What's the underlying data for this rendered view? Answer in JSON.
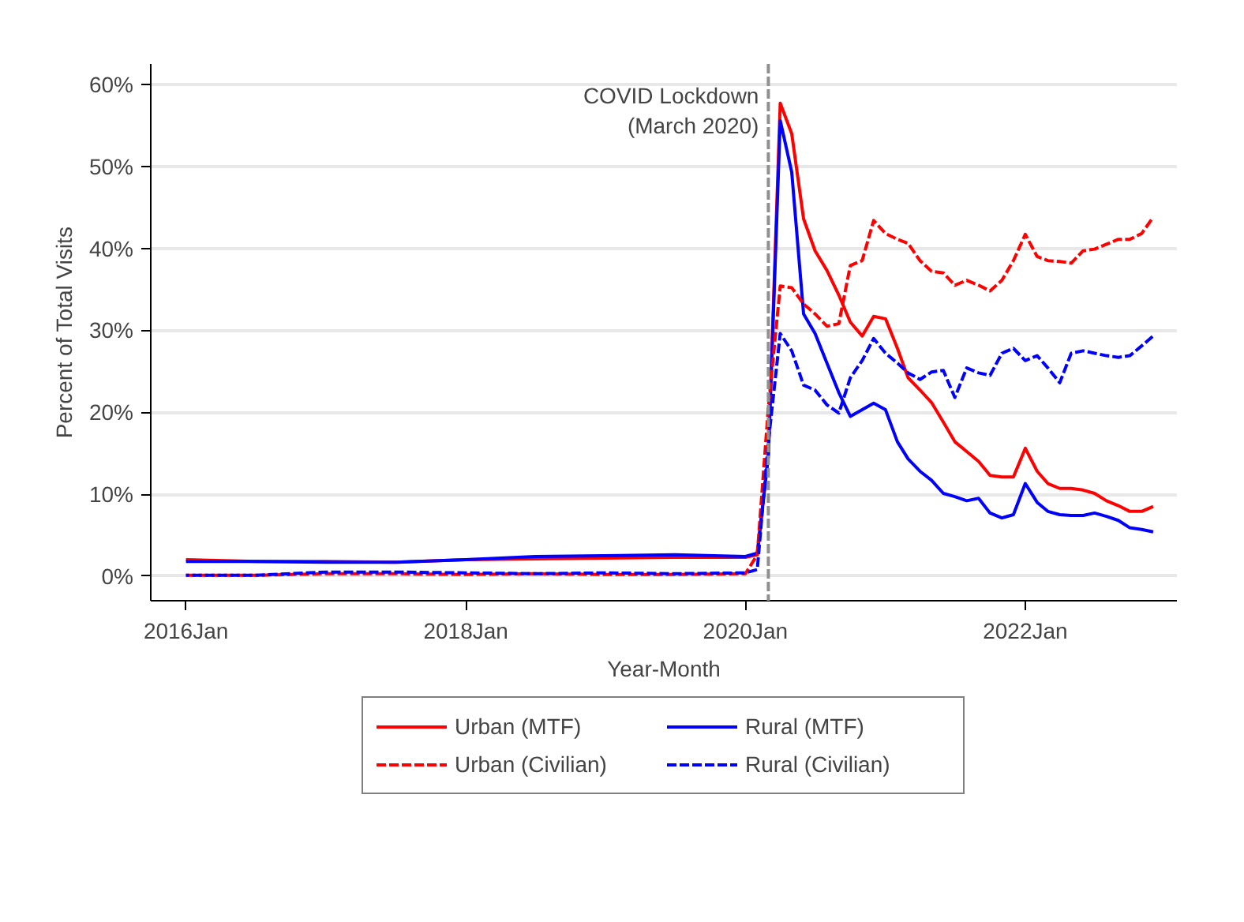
{
  "chart_data": {
    "type": "line",
    "xlabel": "Year-Month",
    "ylabel": "Percent of Total Visits",
    "x": [
      "2016-01",
      "2016-07",
      "2017-01",
      "2017-07",
      "2018-01",
      "2018-07",
      "2019-01",
      "2019-07",
      "2020-01",
      "2020-02",
      "2020-03",
      "2020-04",
      "2020-05",
      "2020-06",
      "2020-07",
      "2020-08",
      "2020-09",
      "2020-10",
      "2020-11",
      "2020-12",
      "2021-01",
      "2021-02",
      "2021-03",
      "2021-04",
      "2021-05",
      "2021-06",
      "2021-07",
      "2021-08",
      "2021-09",
      "2021-10",
      "2021-11",
      "2021-12",
      "2022-01",
      "2022-02",
      "2022-03",
      "2022-04",
      "2022-05",
      "2022-06",
      "2022-07",
      "2022-08",
      "2022-09",
      "2022-10",
      "2022-11",
      "2022-12"
    ],
    "series": [
      {
        "name": "Urban (MTF)",
        "color": "#ff0000",
        "line_style": "solid",
        "values": [
          2.0,
          1.8,
          1.8,
          1.7,
          2.0,
          2.1,
          2.2,
          2.3,
          2.3,
          2.6,
          15,
          57.7,
          54,
          43.6,
          39.7,
          37.3,
          34.3,
          31,
          29.3,
          31.7,
          31.4,
          27.8,
          24.2,
          22.7,
          21.2,
          18.8,
          16.4,
          15.2,
          14,
          12.3,
          12.1,
          12.1,
          15.6,
          12.8,
          11.3,
          10.7,
          10.7,
          10.5,
          10.1,
          9.2,
          8.6,
          7.9,
          7.9,
          8.5
        ]
      },
      {
        "name": "Rural (MTF)",
        "color": "#0000ff",
        "line_style": "solid",
        "values": [
          1.8,
          1.8,
          1.7,
          1.7,
          2.0,
          2.4,
          2.5,
          2.6,
          2.4,
          2.8,
          14.6,
          55.6,
          49.3,
          32,
          29.6,
          26,
          22.4,
          19.5,
          20.3,
          21.1,
          20.3,
          16.4,
          14.3,
          12.8,
          11.7,
          10.1,
          9.7,
          9.2,
          9.5,
          7.7,
          7.1,
          7.5,
          11.3,
          9,
          7.9,
          7.5,
          7.4,
          7.4,
          7.7,
          7.3,
          6.8,
          5.9,
          5.7,
          5.4
        ]
      },
      {
        "name": "Urban (Civilian)",
        "color": "#ff0000",
        "line_style": "dashed",
        "values": [
          0.1,
          0.1,
          0.3,
          0.3,
          0.2,
          0.3,
          0.2,
          0.2,
          0.3,
          2.6,
          20.6,
          35.4,
          35.2,
          33.2,
          32,
          30.5,
          30.8,
          37.9,
          38.5,
          43.4,
          41.8,
          41.1,
          40.6,
          38.5,
          37.2,
          37,
          35.5,
          36.1,
          35.5,
          34.8,
          36.1,
          38.5,
          41.7,
          39,
          38.5,
          38.4,
          38.2,
          39.7,
          39.9,
          40.5,
          41.1,
          41.1,
          41.8,
          43.8
        ]
      },
      {
        "name": "Rural (Civilian)",
        "color": "#0000ff",
        "line_style": "dashed",
        "values": [
          0.1,
          0.1,
          0.5,
          0.5,
          0.4,
          0.3,
          0.4,
          0.3,
          0.4,
          0.8,
          16.4,
          29.6,
          27.5,
          23.3,
          22.7,
          20.9,
          19.9,
          24.2,
          26.3,
          29,
          27.2,
          26,
          24.8,
          24,
          24.9,
          25.1,
          21.8,
          25.4,
          24.8,
          24.5,
          27.2,
          27.8,
          26.3,
          26.9,
          25.4,
          23.6,
          27.2,
          27.5,
          27.2,
          26.9,
          26.7,
          26.9,
          28.1,
          29.3
        ]
      }
    ],
    "xlim": [
      "2015-10",
      "2023-02"
    ],
    "xticks": [
      {
        "value": "2016-01",
        "label": "2016Jan"
      },
      {
        "value": "2018-01",
        "label": "2018Jan"
      },
      {
        "value": "2020-01",
        "label": "2020Jan"
      },
      {
        "value": "2022-01",
        "label": "2022Jan"
      }
    ],
    "ylim": [
      -3,
      62.5
    ],
    "yticks": [
      {
        "value": 0,
        "label": "0%"
      },
      {
        "value": 10,
        "label": "10%"
      },
      {
        "value": 20,
        "label": "20%"
      },
      {
        "value": 30,
        "label": "30%"
      },
      {
        "value": 40,
        "label": "40%"
      },
      {
        "value": 50,
        "label": "50%"
      },
      {
        "value": 60,
        "label": "60%"
      }
    ],
    "ref_lines": [
      {
        "axis": "x",
        "value": "2020-03",
        "label": "COVID Lockdown\n(March 2020)",
        "color": "#909090",
        "line_style": "dashed"
      }
    ],
    "grid": "y",
    "legend": "bottom"
  }
}
